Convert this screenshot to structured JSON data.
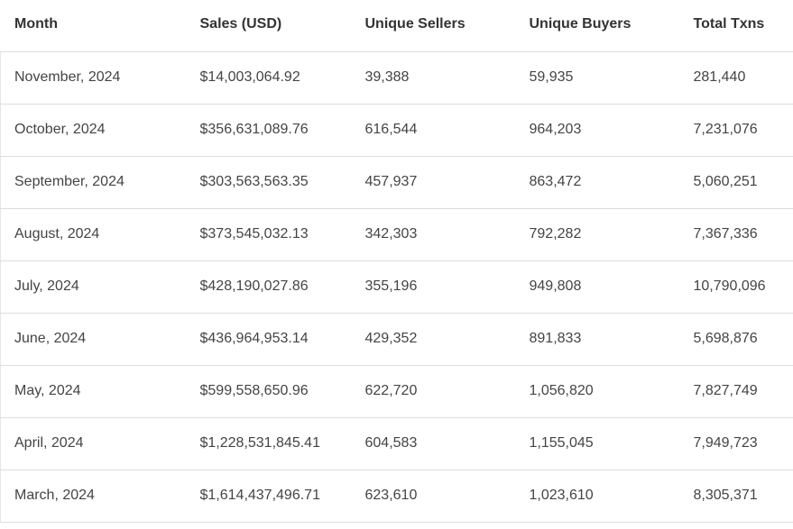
{
  "table": {
    "headers": [
      "Month",
      "Sales (USD)",
      "Unique Sellers",
      "Unique Buyers",
      "Total Txns"
    ],
    "rows": [
      [
        "November, 2024",
        "$14,003,064.92",
        "39,388",
        "59,935",
        "281,440"
      ],
      [
        "October, 2024",
        "$356,631,089.76",
        "616,544",
        "964,203",
        "7,231,076"
      ],
      [
        "September, 2024",
        "$303,563,563.35",
        "457,937",
        "863,472",
        "5,060,251"
      ],
      [
        "August, 2024",
        "$373,545,032.13",
        "342,303",
        "792,282",
        "7,367,336"
      ],
      [
        "July, 2024",
        "$428,190,027.86",
        "355,196",
        "949,808",
        "10,790,096"
      ],
      [
        "June, 2024",
        "$436,964,953.14",
        "429,352",
        "891,833",
        "5,698,876"
      ],
      [
        "May, 2024",
        "$599,558,650.96",
        "622,720",
        "1,056,820",
        "7,827,749"
      ],
      [
        "April, 2024",
        "$1,228,531,845.41",
        "604,583",
        "1,155,045",
        "7,949,723"
      ],
      [
        "March, 2024",
        "$1,614,437,496.71",
        "623,610",
        "1,023,610",
        "8,305,371"
      ]
    ]
  }
}
